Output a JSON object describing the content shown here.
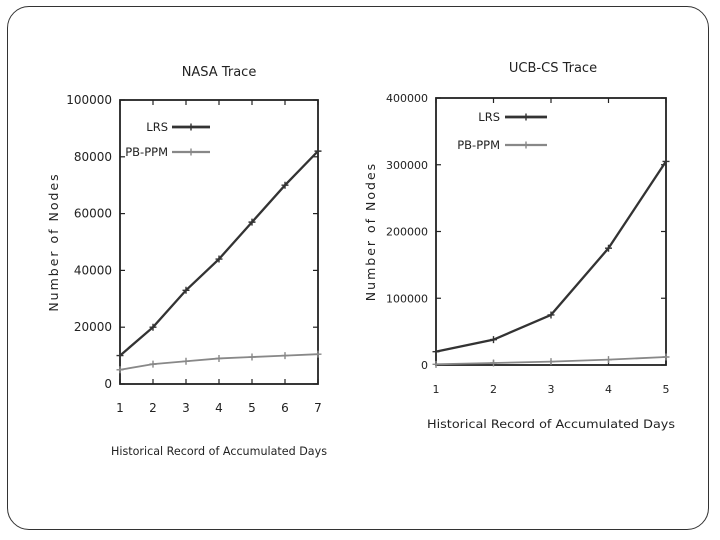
{
  "chart_data": [
    {
      "type": "line",
      "title": "NASA Trace",
      "xlabel": "Historical Record of Accumulated Days",
      "ylabel": "Number of Nodes",
      "x": [
        1,
        2,
        3,
        4,
        5,
        6,
        7
      ],
      "xticks": [
        "1",
        "2",
        "3",
        "4",
        "5",
        "6",
        "7"
      ],
      "yticks": [
        "0",
        "20000",
        "40000",
        "60000",
        "80000",
        "100000"
      ],
      "xlim": [
        1,
        7
      ],
      "ylim": [
        0,
        100000
      ],
      "legend_position": "top-left",
      "series": [
        {
          "name": "LRS",
          "values": [
            10000,
            20000,
            33000,
            44000,
            57000,
            70000,
            82000
          ]
        },
        {
          "name": "PB-PPM",
          "values": [
            5000,
            7000,
            8000,
            9000,
            9500,
            10000,
            10500
          ]
        }
      ]
    },
    {
      "type": "line",
      "title": "UCB-CS Trace",
      "xlabel": "Historical Record of Accumulated Days",
      "ylabel": "Number of Nodes",
      "x": [
        1,
        2,
        3,
        4,
        5
      ],
      "xticks": [
        "1",
        "2",
        "3",
        "4",
        "5"
      ],
      "yticks": [
        "0",
        "100000",
        "200000",
        "300000",
        "400000"
      ],
      "xlim": [
        1,
        5
      ],
      "ylim": [
        0,
        400000
      ],
      "legend_position": "top-left",
      "series": [
        {
          "name": "LRS",
          "values": [
            20000,
            38000,
            75000,
            175000,
            305000
          ]
        },
        {
          "name": "PB-PPM",
          "values": [
            1000,
            3000,
            5000,
            8000,
            12000
          ]
        }
      ]
    }
  ]
}
